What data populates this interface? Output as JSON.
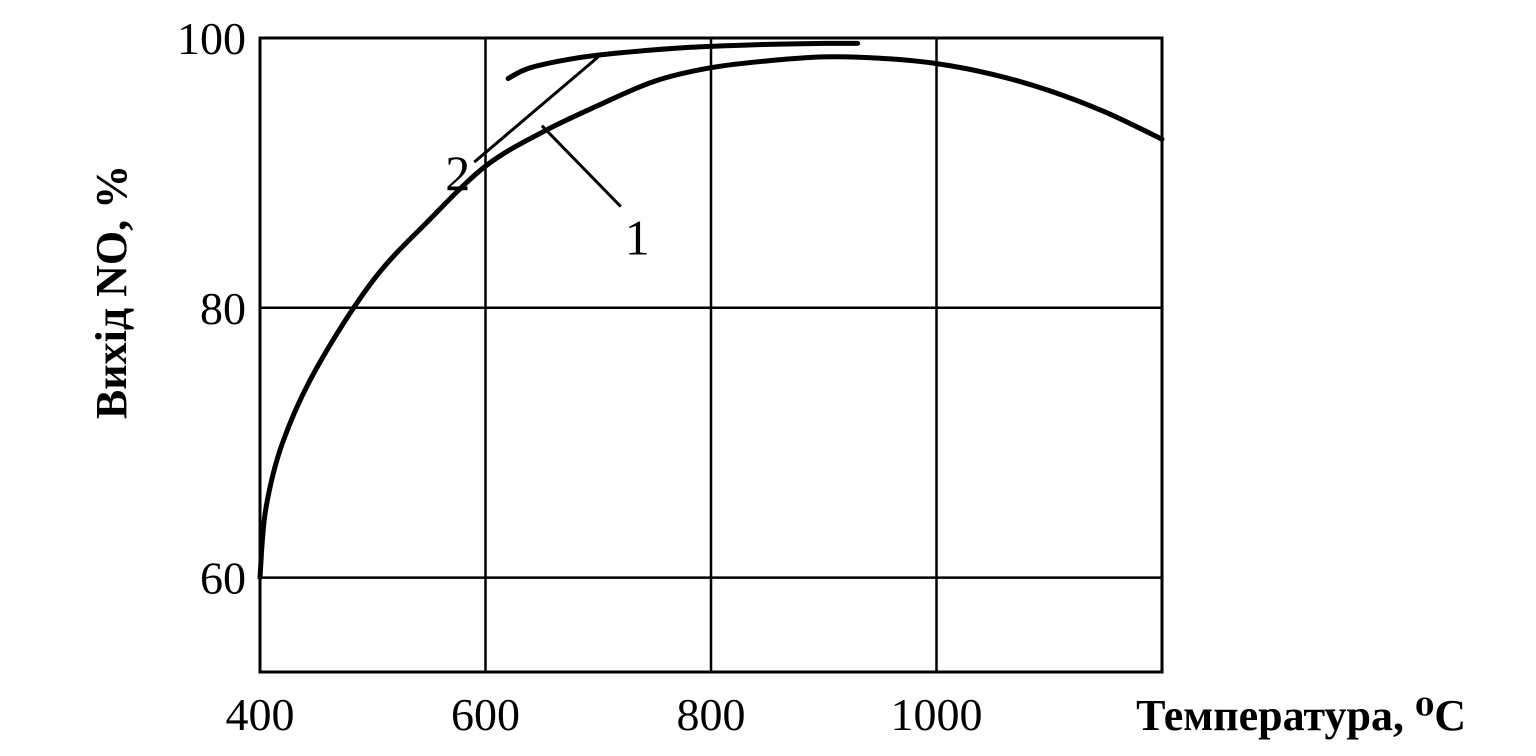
{
  "chart_data": {
    "type": "line",
    "title": "",
    "xlabel": "Температура, ⁰С",
    "ylabel": "Вихід NO, %",
    "xlim": [
      400,
      1200
    ],
    "ylim": [
      53,
      100
    ],
    "x_ticks": [
      400,
      600,
      800,
      1000
    ],
    "y_ticks": [
      60,
      80,
      100
    ],
    "x_tick_labels": [
      "400",
      "600",
      "800",
      "1000"
    ],
    "y_tick_labels": [
      "60",
      "80",
      "100"
    ],
    "grid": true,
    "legend": "none",
    "series": [
      {
        "name": "1",
        "x": [
          400,
          405,
          420,
          450,
          500,
          550,
          600,
          650,
          700,
          750,
          800,
          850,
          900,
          950,
          1000,
          1050,
          1100,
          1150,
          1200
        ],
        "y": [
          60.0,
          65.0,
          70.0,
          75.5,
          82.0,
          86.5,
          90.5,
          93.0,
          95.0,
          96.8,
          97.8,
          98.3,
          98.6,
          98.5,
          98.1,
          97.3,
          96.1,
          94.5,
          92.5
        ]
      },
      {
        "name": "2",
        "x": [
          620,
          640,
          680,
          720,
          780,
          840,
          900,
          930
        ],
        "y": [
          97.0,
          97.8,
          98.5,
          98.9,
          99.3,
          99.5,
          99.6,
          99.6
        ]
      }
    ],
    "annotations": [
      {
        "text": "1",
        "points_to_series": "1",
        "anchor_x": 650,
        "anchor_y": 93.5,
        "label_x": 720,
        "label_y": 87.5
      },
      {
        "text": "2",
        "points_to_series": "2",
        "anchor_x": 700,
        "anchor_y": 98.6,
        "label_x": 590,
        "label_y": 90.8
      }
    ]
  }
}
